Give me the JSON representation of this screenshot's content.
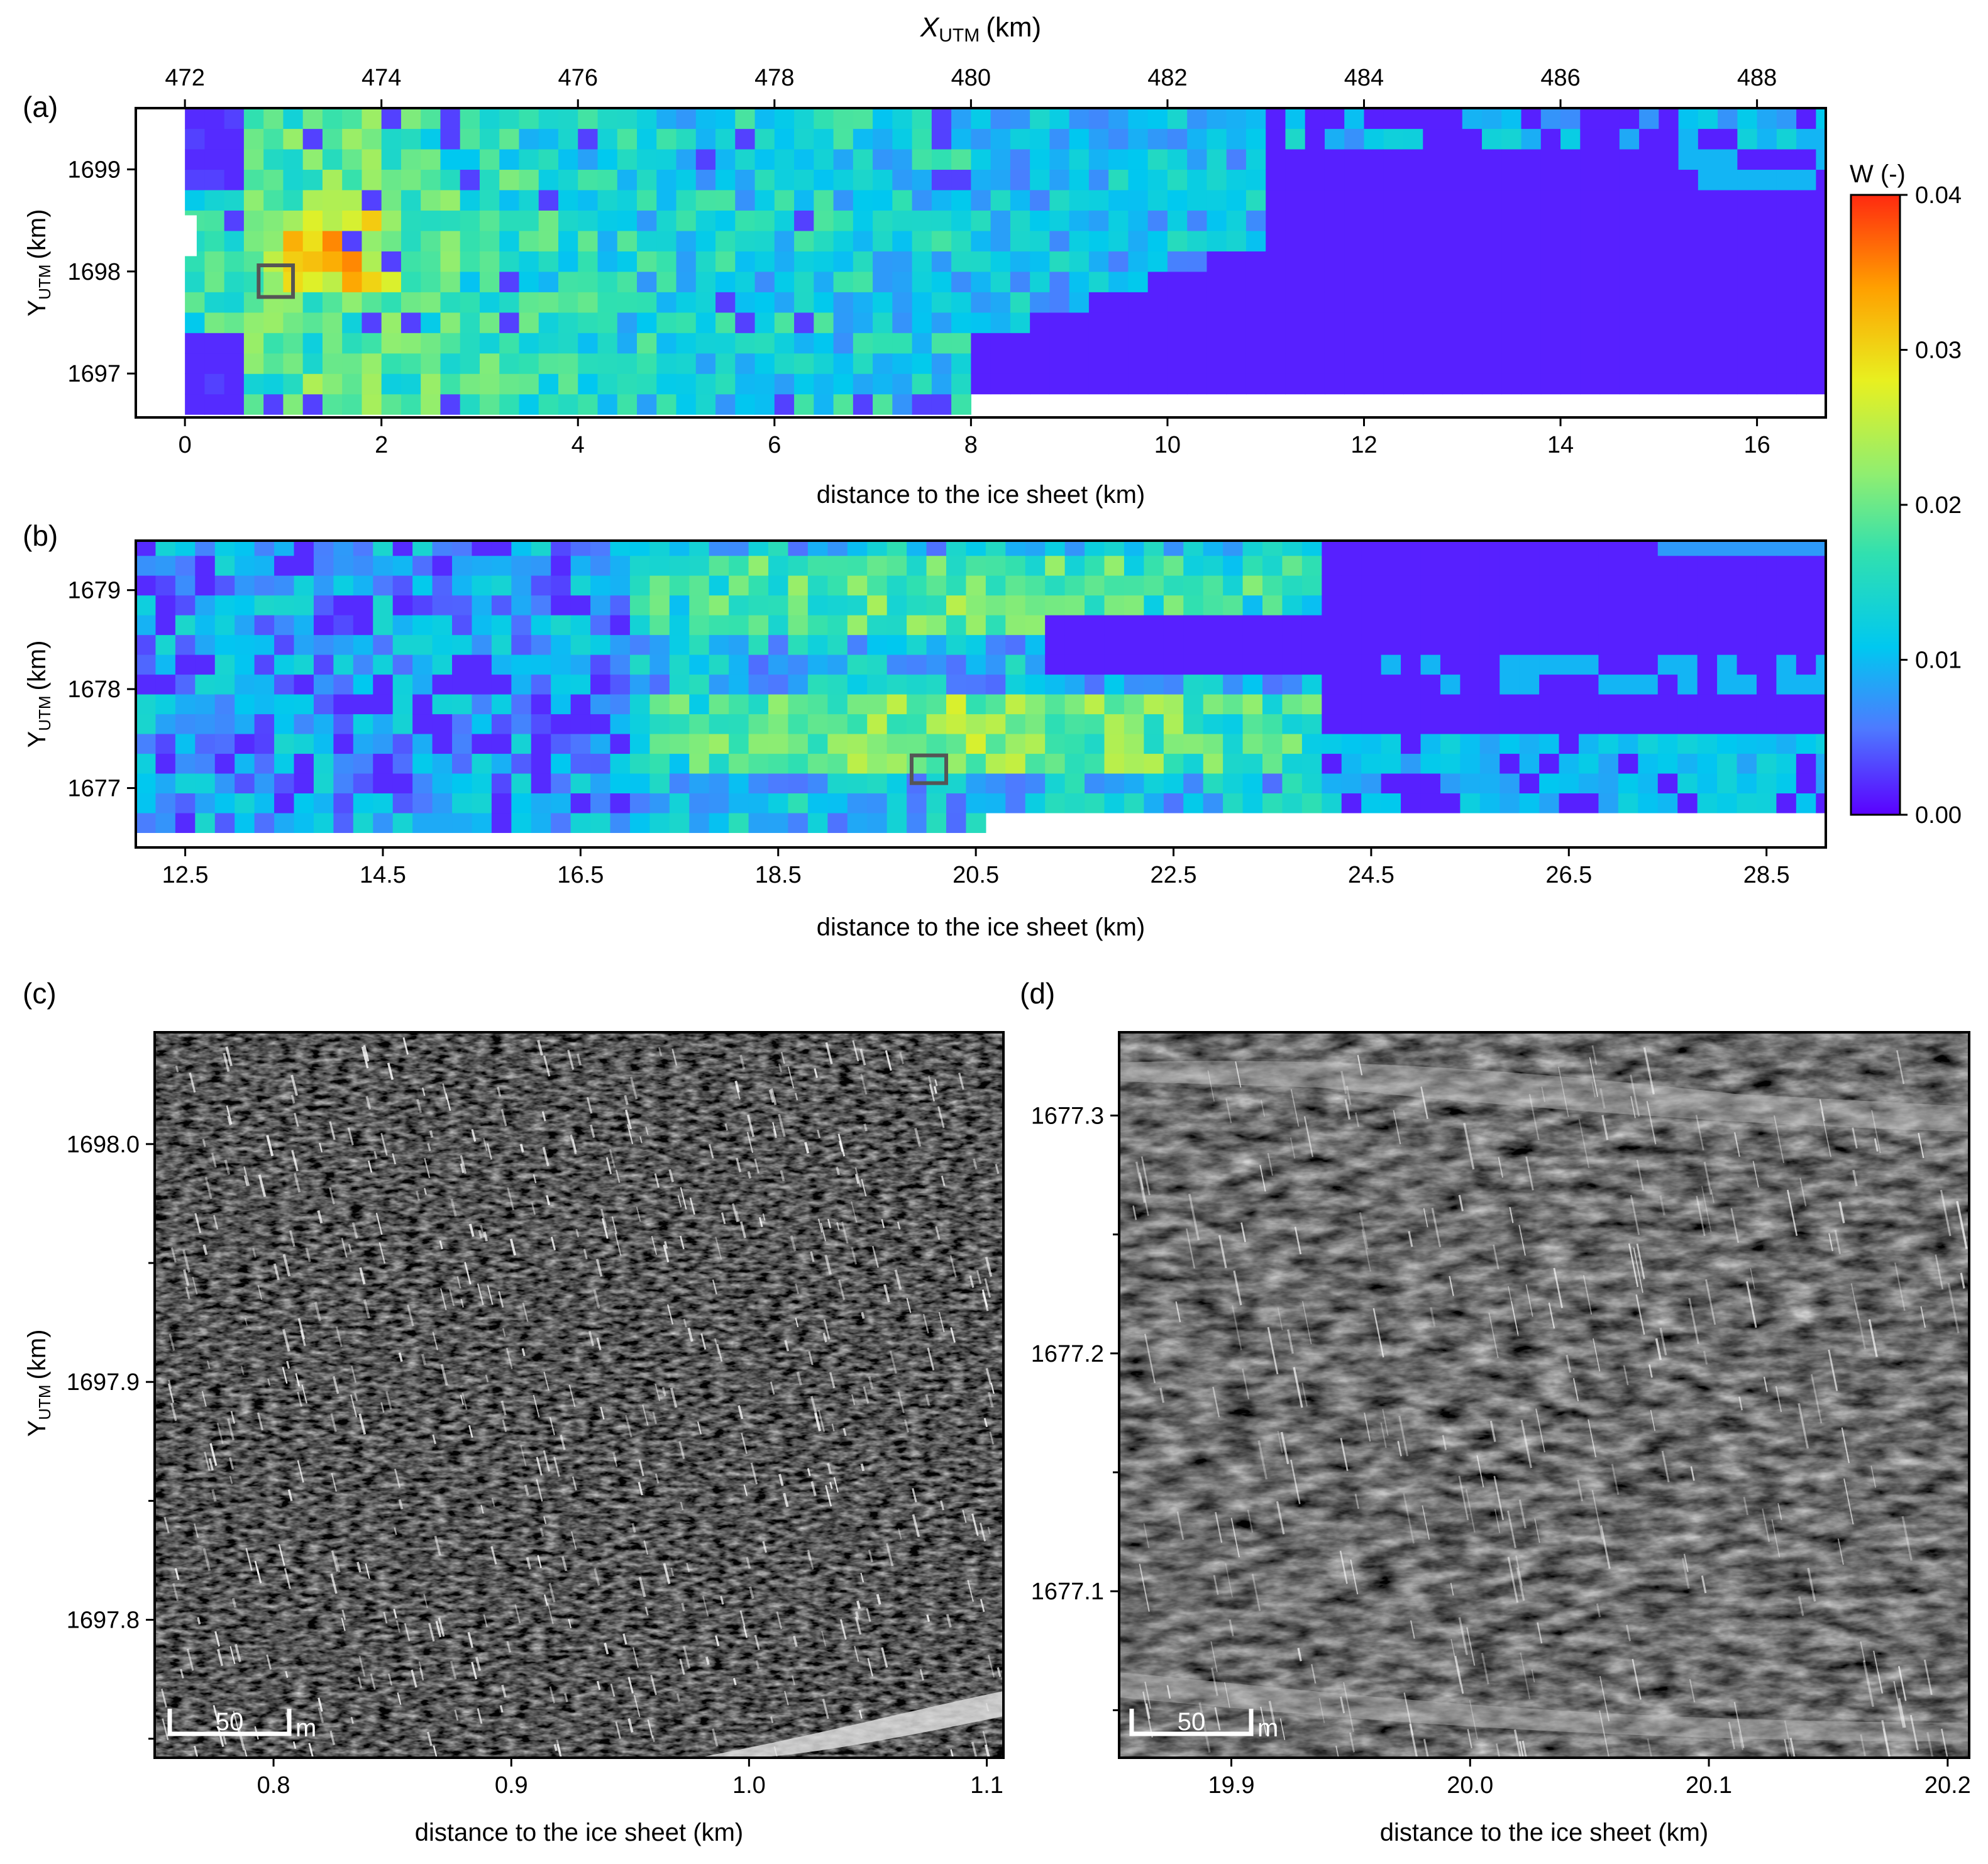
{
  "colors": {
    "colormap": [
      "#5a00ff",
      "#4d7bff",
      "#00c8f0",
      "#30e0b0",
      "#90ee70",
      "#e8f020",
      "#ffa000",
      "#ff2a10"
    ],
    "frame": "#000000",
    "box": "#555555",
    "image_bg": "#151515"
  },
  "chart_data": [
    {
      "panel": "(a)",
      "type": "heatmap",
      "title": "",
      "top_axis_label": "X",
      "top_axis_label_sub": "UTM",
      "top_axis_label_unit": "(km)",
      "top_ticks": [
        472,
        474,
        476,
        478,
        480,
        482,
        484,
        486,
        488
      ],
      "xlabel": "distance to the ice sheet (km)",
      "ylabel": "Y",
      "ylabel_sub": "UTM",
      "ylabel_unit": "(km)",
      "xticks": [
        0,
        2,
        4,
        6,
        8,
        10,
        12,
        14,
        16
      ],
      "yticks": [
        1697,
        1698,
        1699
      ],
      "xlim": [
        -0.5,
        16.7
      ],
      "ylim": [
        1696.57,
        1699.6
      ],
      "value_range": [
        0,
        0.04
      ],
      "grid": false,
      "highlight_box": {
        "x": [
          0.75,
          1.1
        ],
        "y": [
          1697.75,
          1698.06
        ]
      }
    },
    {
      "panel": "(b)",
      "type": "heatmap",
      "title": "",
      "xlabel": "distance to the ice sheet (km)",
      "ylabel": "Y",
      "ylabel_sub": "UTM",
      "ylabel_unit": "(km)",
      "xticks": [
        12.5,
        14.5,
        16.5,
        18.5,
        20.5,
        22.5,
        24.5,
        26.5,
        28.5
      ],
      "yticks": [
        1677,
        1678,
        1679
      ],
      "xlim": [
        12,
        29.1
      ],
      "ylim": [
        1676.4,
        1679.5
      ],
      "value_range": [
        0,
        0.04
      ],
      "grid": false,
      "highlight_box": {
        "x": [
          19.85,
          20.2
        ],
        "y": [
          1677.05,
          1677.33
        ]
      }
    },
    {
      "panel": "colorbar",
      "type": "heatmap",
      "label": "W (-)",
      "ticks": [
        "0.00",
        "0.01",
        "0.02",
        "0.03",
        "0.04"
      ],
      "range": [
        0,
        0.04
      ]
    },
    {
      "panel": "(c)",
      "type": "image",
      "xlabel": "distance to the ice sheet (km)",
      "ylabel": "Y",
      "ylabel_sub": "UTM",
      "ylabel_unit": "(km)",
      "xticks": [
        "0.8",
        "0.9",
        "1.0",
        "1.1"
      ],
      "yticks": [
        "1697.8",
        "1697.9",
        "1698.0"
      ],
      "xlim": [
        0.75,
        1.107
      ],
      "ylim": [
        1697.742,
        1698.047
      ],
      "scale_bar": {
        "value": "50",
        "unit": "m"
      }
    },
    {
      "panel": "(d)",
      "type": "image",
      "xlabel": "distance to the ice sheet (km)",
      "ylabel": "",
      "xticks": [
        "19.9",
        "20.0",
        "20.1",
        "20.2"
      ],
      "yticks": [
        "1677.1",
        "1677.2",
        "1677.3"
      ],
      "xlim": [
        19.853,
        20.209
      ],
      "ylim": [
        1677.03,
        1677.335
      ],
      "scale_bar": {
        "value": "50",
        "unit": "m"
      }
    }
  ]
}
